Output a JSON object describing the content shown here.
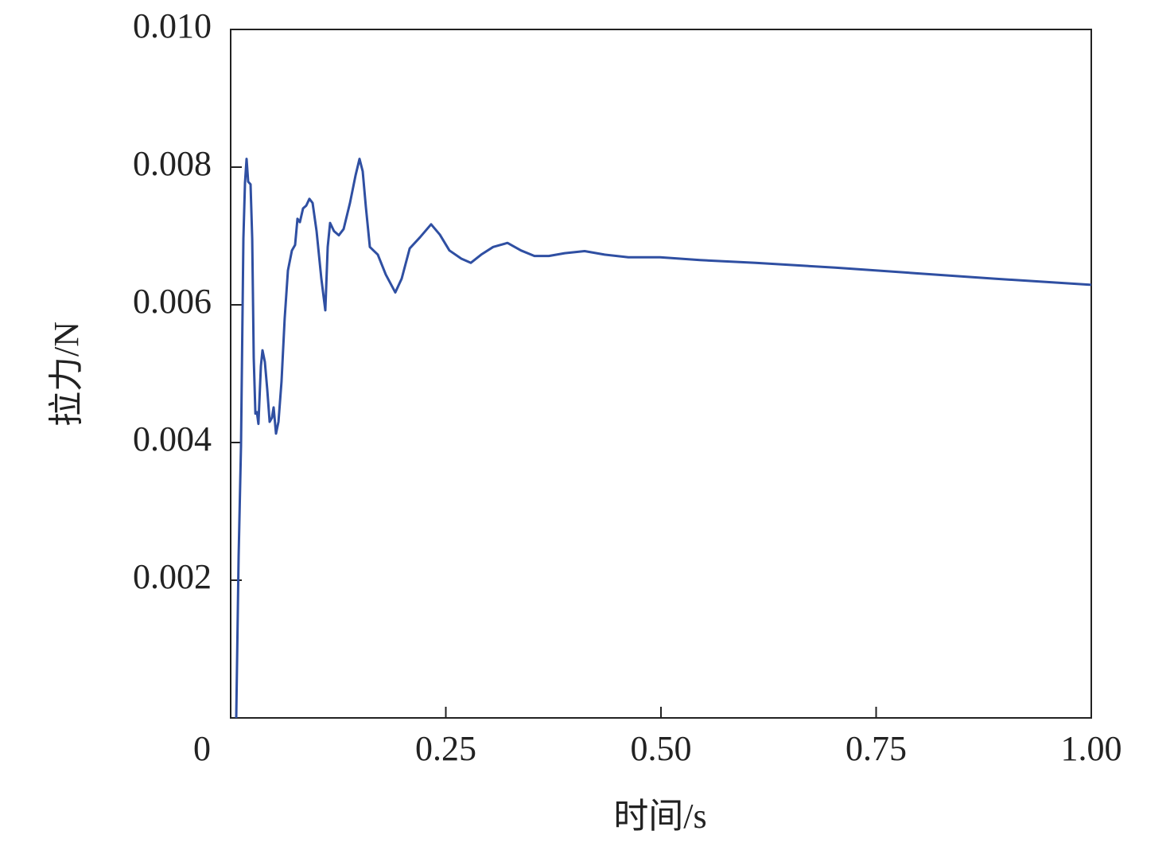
{
  "chart_data": {
    "type": "line",
    "xlabel": "时间/s",
    "ylabel": "拉力/N",
    "x": [
      0.0065,
      0.0092,
      0.012,
      0.0148,
      0.0166,
      0.0185,
      0.0203,
      0.0231,
      0.025,
      0.0268,
      0.0287,
      0.0305,
      0.0323,
      0.0351,
      0.037,
      0.0397,
      0.0425,
      0.0453,
      0.048,
      0.0499,
      0.0527,
      0.0555,
      0.0591,
      0.0628,
      0.0665,
      0.0712,
      0.0749,
      0.0776,
      0.0804,
      0.0841,
      0.0878,
      0.0915,
      0.0952,
      0.0998,
      0.1054,
      0.11,
      0.1128,
      0.1155,
      0.1201,
      0.1257,
      0.1312,
      0.1386,
      0.1451,
      0.1497,
      0.1534,
      0.1571,
      0.1617,
      0.171,
      0.1802,
      0.1913,
      0.1987,
      0.208,
      0.22,
      0.2329,
      0.2431,
      0.2542,
      0.268,
      0.2791,
      0.2911,
      0.305,
      0.3216,
      0.3373,
      0.353,
      0.3697,
      0.3882,
      0.4113,
      0.4344,
      0.4621,
      0.4991,
      0.5453,
      0.61,
      0.7024,
      0.7948,
      0.8872,
      1.0
    ],
    "values": [
      0,
      0.00234,
      0.00395,
      0.00696,
      0.00777,
      0.00812,
      0.00779,
      0.00775,
      0.00696,
      0.00523,
      0.00442,
      0.00444,
      0.00427,
      0.00511,
      0.00534,
      0.00517,
      0.00477,
      0.0043,
      0.00436,
      0.00451,
      0.00413,
      0.0043,
      0.00488,
      0.0058,
      0.0065,
      0.00679,
      0.00687,
      0.00725,
      0.0072,
      0.0074,
      0.00744,
      0.00754,
      0.00748,
      0.00707,
      0.00638,
      0.00592,
      0.00684,
      0.00719,
      0.00707,
      0.00701,
      0.0071,
      0.00748,
      0.00788,
      0.00812,
      0.00794,
      0.00742,
      0.00684,
      0.00673,
      0.00644,
      0.00618,
      0.00638,
      0.00682,
      0.00698,
      0.00717,
      0.00702,
      0.00679,
      0.00667,
      0.00661,
      0.00673,
      0.00684,
      0.0069,
      0.00679,
      0.00671,
      0.00671,
      0.00675,
      0.00678,
      0.00673,
      0.00669,
      0.00669,
      0.00665,
      0.00661,
      0.00654,
      0.00646,
      0.00638,
      0.00629
    ],
    "color": "#2f4fa2",
    "xlim": [
      0,
      1
    ],
    "xticks": [
      0,
      0.25,
      {
        "value": 0.5,
        "label": "0.50"
      },
      0.75,
      {
        "value": 1,
        "label": "1.00"
      }
    ],
    "ylim": [
      0,
      0.01
    ],
    "yticks": [
      0.002,
      0.004,
      0.006,
      0.008,
      {
        "value": 0.01,
        "label": "0.010"
      }
    ]
  }
}
